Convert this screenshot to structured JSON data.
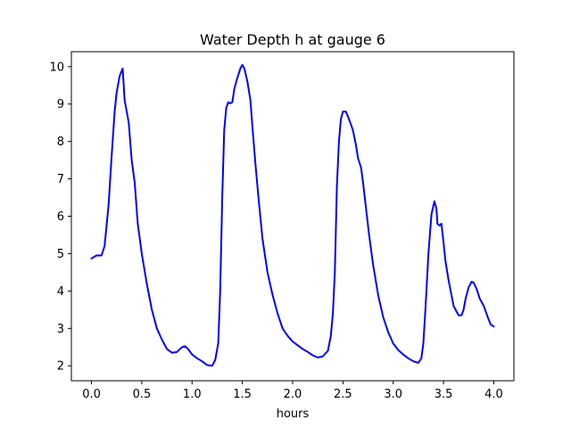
{
  "chart_data": {
    "type": "line",
    "title": "Water Depth h at gauge 6",
    "xlabel": "hours",
    "ylabel": "",
    "xlim": [
      -0.2,
      4.2
    ],
    "ylim": [
      1.6,
      10.4
    ],
    "xticks": [
      0.0,
      0.5,
      1.0,
      1.5,
      2.0,
      2.5,
      3.0,
      3.5,
      4.0
    ],
    "xtick_labels": [
      "0.0",
      "0.5",
      "1.0",
      "1.5",
      "2.0",
      "2.5",
      "3.0",
      "3.5",
      "4.0"
    ],
    "yticks": [
      2,
      3,
      4,
      5,
      6,
      7,
      8,
      9,
      10
    ],
    "ytick_labels": [
      "2",
      "3",
      "4",
      "5",
      "6",
      "7",
      "8",
      "9",
      "10"
    ],
    "grid": false,
    "series": [
      {
        "color": "#0000ff",
        "x": [
          0.0,
          0.05,
          0.1,
          0.13,
          0.17,
          0.2,
          0.23,
          0.25,
          0.28,
          0.31,
          0.33,
          0.35,
          0.37,
          0.4,
          0.43,
          0.46,
          0.5,
          0.55,
          0.6,
          0.65,
          0.7,
          0.75,
          0.8,
          0.85,
          0.9,
          0.93,
          0.96,
          1.0,
          1.05,
          1.1,
          1.15,
          1.2,
          1.23,
          1.26,
          1.28,
          1.3,
          1.32,
          1.34,
          1.36,
          1.38,
          1.4,
          1.42,
          1.45,
          1.48,
          1.5,
          1.52,
          1.55,
          1.58,
          1.6,
          1.63,
          1.66,
          1.7,
          1.75,
          1.8,
          1.85,
          1.9,
          1.95,
          2.0,
          2.05,
          2.1,
          2.15,
          2.2,
          2.25,
          2.3,
          2.35,
          2.38,
          2.4,
          2.42,
          2.44,
          2.46,
          2.48,
          2.5,
          2.53,
          2.56,
          2.58,
          2.6,
          2.63,
          2.65,
          2.68,
          2.7,
          2.73,
          2.76,
          2.8,
          2.85,
          2.9,
          2.95,
          3.0,
          3.05,
          3.1,
          3.15,
          3.2,
          3.25,
          3.28,
          3.3,
          3.32,
          3.35,
          3.38,
          3.41,
          3.43,
          3.44,
          3.46,
          3.48,
          3.5,
          3.52,
          3.55,
          3.6,
          3.65,
          3.68,
          3.7,
          3.72,
          3.75,
          3.78,
          3.8,
          3.83,
          3.86,
          3.9,
          3.94,
          3.97,
          4.0
        ],
        "y": [
          4.87,
          4.95,
          4.95,
          5.2,
          6.3,
          7.6,
          8.8,
          9.3,
          9.75,
          9.95,
          9.1,
          8.8,
          8.5,
          7.5,
          6.9,
          5.8,
          5.0,
          4.2,
          3.5,
          3.0,
          2.7,
          2.45,
          2.35,
          2.37,
          2.5,
          2.52,
          2.45,
          2.3,
          2.2,
          2.12,
          2.02,
          2.0,
          2.15,
          2.6,
          4.0,
          6.5,
          8.3,
          8.9,
          9.05,
          9.02,
          9.05,
          9.4,
          9.7,
          9.95,
          10.05,
          9.95,
          9.6,
          9.1,
          8.4,
          7.4,
          6.5,
          5.4,
          4.5,
          3.9,
          3.4,
          3.0,
          2.8,
          2.65,
          2.55,
          2.45,
          2.37,
          2.28,
          2.22,
          2.25,
          2.4,
          2.8,
          3.4,
          4.5,
          6.8,
          8.0,
          8.6,
          8.8,
          8.8,
          8.6,
          8.45,
          8.3,
          7.9,
          7.55,
          7.3,
          6.9,
          6.2,
          5.5,
          4.7,
          3.9,
          3.3,
          2.9,
          2.6,
          2.42,
          2.3,
          2.2,
          2.12,
          2.08,
          2.2,
          2.6,
          3.5,
          5.0,
          6.05,
          6.4,
          6.2,
          5.8,
          5.75,
          5.8,
          5.3,
          4.8,
          4.3,
          3.6,
          3.35,
          3.35,
          3.5,
          3.8,
          4.1,
          4.25,
          4.22,
          4.05,
          3.8,
          3.6,
          3.3,
          3.1,
          3.05
        ]
      }
    ]
  }
}
